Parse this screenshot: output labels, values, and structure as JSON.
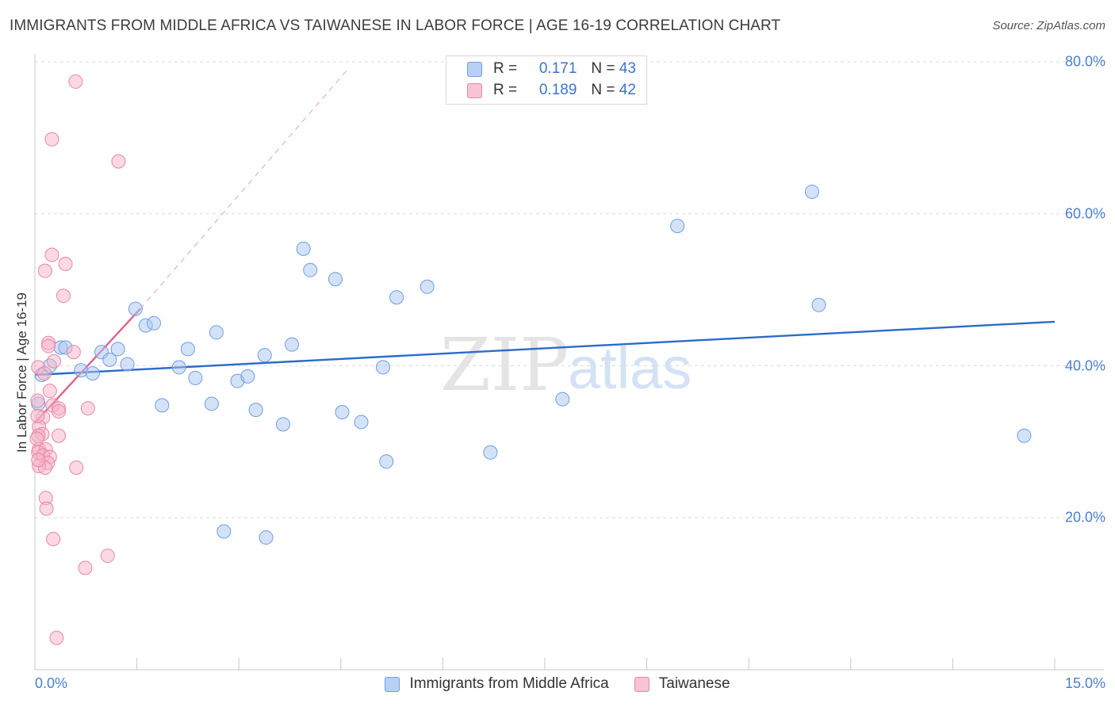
{
  "title": "IMMIGRANTS FROM MIDDLE AFRICA VS TAIWANESE IN LABOR FORCE | AGE 16-19 CORRELATION CHART",
  "source": "Source: ZipAtlas.com",
  "watermark": {
    "zip": "ZIP",
    "atlas": "atlas"
  },
  "legend": {
    "r_label": "R =",
    "n_label": "N =",
    "series1": {
      "r": "0.171",
      "n": "43"
    },
    "series2": {
      "r": "0.189",
      "n": "42"
    }
  },
  "bottom_legend": {
    "series1": "Immigrants from Middle Africa",
    "series2": "Taiwanese"
  },
  "x_tick_left": "0.0%",
  "x_tick_right": "15.0%",
  "chart_data": {
    "type": "scatter",
    "title": "IMMIGRANTS FROM MIDDLE AFRICA VS TAIWANESE IN LABOR FORCE | AGE 16-19 CORRELATION CHART",
    "xlabel": "",
    "ylabel": "In Labor Force | Age 16-19",
    "xlim": [
      0,
      15
    ],
    "ylim": [
      0,
      80
    ],
    "y_ticks": [
      {
        "value": 20,
        "label": "20.0%"
      },
      {
        "value": 40,
        "label": "40.0%"
      },
      {
        "value": 60,
        "label": "60.0%"
      },
      {
        "value": 80,
        "label": "80.0%"
      }
    ],
    "x_tick_labels": [
      "0.0%",
      "15.0%"
    ],
    "grid": true,
    "series": [
      {
        "name": "Immigrants from Middle Africa",
        "color": "#a9c6f0",
        "edge": "#6f9ee0",
        "line_color": "#2a6cc8",
        "trend": {
          "x0": 0.0,
          "y0": 38.8,
          "x1": 15.0,
          "y1": 45.8
        },
        "points": [
          [
            0.1,
            38.8
          ],
          [
            0.22,
            40.0
          ],
          [
            0.38,
            42.4
          ],
          [
            0.45,
            42.4
          ],
          [
            0.68,
            39.4
          ],
          [
            0.85,
            39.0
          ],
          [
            0.98,
            41.8
          ],
          [
            1.1,
            40.8
          ],
          [
            1.22,
            42.2
          ],
          [
            1.36,
            40.2
          ],
          [
            1.48,
            47.5
          ],
          [
            1.63,
            45.3
          ],
          [
            1.75,
            45.6
          ],
          [
            1.87,
            34.8
          ],
          [
            2.12,
            39.8
          ],
          [
            2.25,
            42.2
          ],
          [
            2.36,
            38.4
          ],
          [
            2.6,
            35.0
          ],
          [
            2.67,
            44.4
          ],
          [
            2.78,
            18.2
          ],
          [
            2.98,
            38.0
          ],
          [
            3.13,
            38.6
          ],
          [
            3.25,
            34.2
          ],
          [
            3.38,
            41.4
          ],
          [
            3.4,
            17.4
          ],
          [
            3.65,
            32.3
          ],
          [
            3.78,
            42.8
          ],
          [
            3.95,
            55.4
          ],
          [
            4.05,
            52.6
          ],
          [
            4.42,
            51.4
          ],
          [
            4.52,
            33.9
          ],
          [
            4.8,
            32.6
          ],
          [
            5.12,
            39.8
          ],
          [
            5.17,
            27.4
          ],
          [
            5.32,
            49.0
          ],
          [
            5.77,
            50.4
          ],
          [
            6.7,
            28.6
          ],
          [
            7.76,
            35.6
          ],
          [
            9.45,
            58.4
          ],
          [
            11.43,
            62.9
          ],
          [
            11.53,
            48.0
          ],
          [
            14.55,
            30.8
          ],
          [
            0.05,
            35.0
          ]
        ]
      },
      {
        "name": "Taiwanese",
        "color": "#f6b3c8",
        "edge": "#e886a6",
        "line_color": "#e2608f",
        "trend": {
          "x0": 0.0,
          "y0": 32.5,
          "x1": 1.55,
          "y1": 47.5
        },
        "trend_ext": {
          "x0": 1.55,
          "y0": 47.5,
          "x1": 4.6,
          "y1": 79.0
        },
        "points": [
          [
            0.6,
            77.4
          ],
          [
            0.25,
            69.8
          ],
          [
            1.23,
            66.9
          ],
          [
            0.25,
            54.6
          ],
          [
            0.45,
            53.4
          ],
          [
            0.15,
            52.5
          ],
          [
            0.42,
            49.2
          ],
          [
            0.2,
            43.0
          ],
          [
            0.2,
            42.6
          ],
          [
            0.57,
            41.8
          ],
          [
            0.28,
            40.6
          ],
          [
            0.05,
            39.8
          ],
          [
            0.14,
            39.0
          ],
          [
            0.22,
            36.7
          ],
          [
            0.26,
            34.8
          ],
          [
            0.35,
            34.4
          ],
          [
            0.35,
            34.0
          ],
          [
            0.78,
            34.4
          ],
          [
            0.12,
            33.2
          ],
          [
            0.06,
            32.0
          ],
          [
            0.11,
            31.0
          ],
          [
            0.05,
            30.8
          ],
          [
            0.35,
            30.8
          ],
          [
            0.06,
            29.0
          ],
          [
            0.16,
            29.0
          ],
          [
            0.05,
            28.6
          ],
          [
            0.12,
            28.2
          ],
          [
            0.22,
            28.0
          ],
          [
            0.19,
            27.2
          ],
          [
            0.06,
            26.8
          ],
          [
            0.15,
            26.6
          ],
          [
            0.61,
            26.6
          ],
          [
            0.16,
            22.6
          ],
          [
            0.17,
            21.2
          ],
          [
            0.27,
            17.2
          ],
          [
            1.07,
            15.0
          ],
          [
            0.74,
            13.4
          ],
          [
            0.32,
            4.2
          ],
          [
            0.04,
            33.4
          ],
          [
            0.04,
            35.4
          ],
          [
            0.03,
            30.4
          ],
          [
            0.05,
            27.6
          ]
        ]
      }
    ]
  }
}
